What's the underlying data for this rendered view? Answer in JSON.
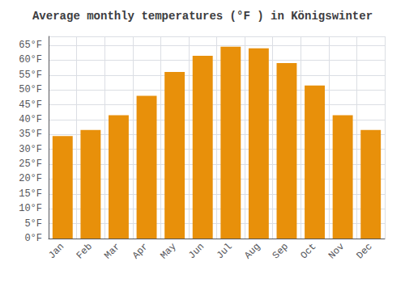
{
  "chart_data": {
    "type": "bar",
    "title": "Average monthly temperatures (°F ) in Königswinter",
    "categories": [
      "Jan",
      "Feb",
      "Mar",
      "Apr",
      "May",
      "Jun",
      "Jul",
      "Aug",
      "Sep",
      "Oct",
      "Nov",
      "Dec"
    ],
    "values": [
      34.5,
      36.5,
      41.5,
      48.0,
      56.0,
      61.5,
      64.5,
      64.0,
      59.0,
      51.5,
      41.5,
      36.5
    ],
    "color": "#E8900A",
    "ylim": [
      0,
      68
    ],
    "yticks": [
      {
        "value": 0,
        "label": "0°F"
      },
      {
        "value": 5,
        "label": "5°F"
      },
      {
        "value": 10,
        "label": "10°F"
      },
      {
        "value": 15,
        "label": "15°F"
      },
      {
        "value": 20,
        "label": "20°F"
      },
      {
        "value": 25,
        "label": "25°F"
      },
      {
        "value": 30,
        "label": "30°F"
      },
      {
        "value": 35,
        "label": "35°F"
      },
      {
        "value": 40,
        "label": "40°F"
      },
      {
        "value": 45,
        "label": "45°F"
      },
      {
        "value": 50,
        "label": "50°F"
      },
      {
        "value": 55,
        "label": "55°F"
      },
      {
        "value": 60,
        "label": "60°F"
      },
      {
        "value": 65,
        "label": "65°F"
      }
    ],
    "grid": true
  }
}
